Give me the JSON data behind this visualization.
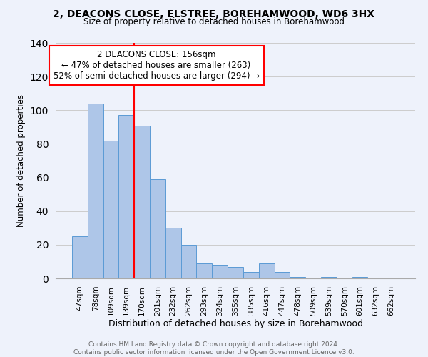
{
  "title1": "2, DEACONS CLOSE, ELSTREE, BOREHAMWOOD, WD6 3HX",
  "title2": "Size of property relative to detached houses in Borehamwood",
  "xlabel": "Distribution of detached houses by size in Borehamwood",
  "ylabel": "Number of detached properties",
  "bar_labels": [
    "47sqm",
    "78sqm",
    "109sqm",
    "139sqm",
    "170sqm",
    "201sqm",
    "232sqm",
    "262sqm",
    "293sqm",
    "324sqm",
    "355sqm",
    "385sqm",
    "416sqm",
    "447sqm",
    "478sqm",
    "509sqm",
    "539sqm",
    "570sqm",
    "601sqm",
    "632sqm",
    "662sqm"
  ],
  "bar_values": [
    25,
    104,
    82,
    97,
    91,
    59,
    30,
    20,
    9,
    8,
    7,
    4,
    9,
    4,
    1,
    0,
    1,
    0,
    1,
    0,
    0
  ],
  "bar_color": "#aec6e8",
  "bar_edgecolor": "#5b9bd5",
  "vline_color": "red",
  "annotation_title": "2 DEACONS CLOSE: 156sqm",
  "annotation_line1": "← 47% of detached houses are smaller (263)",
  "annotation_line2": "52% of semi-detached houses are larger (294) →",
  "annotation_box_color": "white",
  "annotation_box_edgecolor": "red",
  "ylim": [
    0,
    140
  ],
  "yticks": [
    0,
    20,
    40,
    60,
    80,
    100,
    120,
    140
  ],
  "footer1": "Contains HM Land Registry data © Crown copyright and database right 2024.",
  "footer2": "Contains public sector information licensed under the Open Government Licence v3.0.",
  "background_color": "#eef2fb"
}
